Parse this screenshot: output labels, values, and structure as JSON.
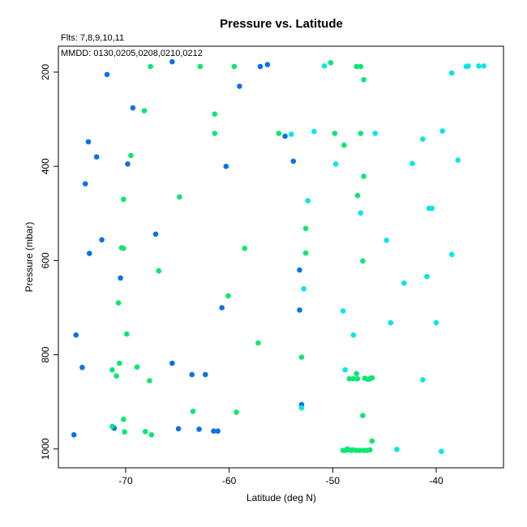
{
  "chart_data": {
    "type": "scatter",
    "title": "Pressure vs. Latitude",
    "annotations": [
      "Flts: 7,8,9,10,11",
      "MMDD: 0130,0205,0208,0210,0212"
    ],
    "xlabel": "Latitude (deg N)",
    "ylabel": "Pressure (mbar)",
    "xlim": [
      -76.5,
      -33.5
    ],
    "ylim": [
      1040,
      145
    ],
    "y_reversed": true,
    "grid": false,
    "legend": "none",
    "xticks": [
      -70,
      -60,
      -50,
      -40
    ],
    "yticks": [
      200,
      400,
      600,
      800,
      1000
    ],
    "colors": {
      "blue": "#0a72e6",
      "green": "#08e872",
      "cyan": "#08e6e6",
      "frame": "#000000"
    },
    "series": [
      {
        "color": "#0a72e6",
        "points": [
          [
            -65.5,
            178
          ],
          [
            -57.0,
            188
          ],
          [
            -56.3,
            184
          ],
          [
            -71.8,
            205
          ],
          [
            -59.0,
            230
          ],
          [
            -69.3,
            276
          ],
          [
            -54.6,
            336
          ],
          [
            -73.6,
            348
          ],
          [
            -72.8,
            380
          ],
          [
            -53.8,
            389
          ],
          [
            -69.8,
            395
          ],
          [
            -60.3,
            400
          ],
          [
            -73.9,
            437
          ],
          [
            -67.1,
            544
          ],
          [
            -72.3,
            556
          ],
          [
            -73.5,
            585
          ],
          [
            -53.2,
            620
          ],
          [
            -70.5,
            637
          ],
          [
            -60.7,
            700
          ],
          [
            -53.2,
            705
          ],
          [
            -74.8,
            758
          ],
          [
            -74.2,
            827
          ],
          [
            -65.5,
            818
          ],
          [
            -63.6,
            842
          ],
          [
            -62.3,
            842
          ],
          [
            -53.0,
            906
          ],
          [
            -71.2,
            954
          ],
          [
            -71.1,
            956
          ],
          [
            -64.9,
            957
          ],
          [
            -62.9,
            958
          ],
          [
            -61.5,
            962
          ],
          [
            -61.1,
            962
          ],
          [
            -75.0,
            970
          ]
        ]
      },
      {
        "color": "#08e872",
        "points": [
          [
            -50.2,
            180
          ],
          [
            -67.6,
            188
          ],
          [
            -62.8,
            188
          ],
          [
            -59.5,
            188
          ],
          [
            -47.7,
            188
          ],
          [
            -47.3,
            188
          ],
          [
            -47.0,
            216
          ],
          [
            -68.2,
            282
          ],
          [
            -61.4,
            289
          ],
          [
            -61.4,
            330
          ],
          [
            -55.2,
            330
          ],
          [
            -49.8,
            330
          ],
          [
            -47.3,
            330
          ],
          [
            -48.9,
            355
          ],
          [
            -69.5,
            377
          ],
          [
            -47.0,
            421
          ],
          [
            -64.8,
            465
          ],
          [
            -70.2,
            470
          ],
          [
            -47.6,
            462
          ],
          [
            -52.6,
            532
          ],
          [
            -70.4,
            573
          ],
          [
            -70.2,
            574
          ],
          [
            -58.5,
            574
          ],
          [
            -52.6,
            584
          ],
          [
            -47.1,
            601
          ],
          [
            -66.8,
            622
          ],
          [
            -60.1,
            675
          ],
          [
            -70.7,
            690
          ],
          [
            -69.9,
            756
          ],
          [
            -57.2,
            775
          ],
          [
            -53.0,
            805
          ],
          [
            -70.6,
            818
          ],
          [
            -68.9,
            826
          ],
          [
            -71.3,
            832
          ],
          [
            -47.7,
            840
          ],
          [
            -70.9,
            845
          ],
          [
            -48.4,
            851
          ],
          [
            -48.0,
            851
          ],
          [
            -47.6,
            851
          ],
          [
            -46.9,
            850
          ],
          [
            -46.6,
            852
          ],
          [
            -46.4,
            851
          ],
          [
            -46.2,
            849
          ],
          [
            -67.7,
            855
          ],
          [
            -63.5,
            920
          ],
          [
            -59.3,
            922
          ],
          [
            -47.1,
            929
          ],
          [
            -70.2,
            937
          ],
          [
            -71.3,
            952
          ],
          [
            -70.1,
            964
          ],
          [
            -68.1,
            963
          ],
          [
            -67.5,
            970
          ],
          [
            -46.2,
            983
          ],
          [
            -48.6,
            1000
          ],
          [
            -48.3,
            1002
          ],
          [
            -48.0,
            1002
          ],
          [
            -47.7,
            1003
          ],
          [
            -47.4,
            1003
          ],
          [
            -47.0,
            1003
          ],
          [
            -46.7,
            1003
          ],
          [
            -46.4,
            1002
          ],
          [
            -49.0,
            1003
          ],
          [
            -48.7,
            1003
          ],
          [
            -48.2,
            1003
          ]
        ]
      },
      {
        "color": "#08e6e6",
        "points": [
          [
            -50.8,
            187
          ],
          [
            -37.1,
            188
          ],
          [
            -36.9,
            187
          ],
          [
            -35.9,
            187
          ],
          [
            -35.4,
            187
          ],
          [
            -38.5,
            202
          ],
          [
            -54.0,
            332
          ],
          [
            -51.8,
            326
          ],
          [
            -45.9,
            330
          ],
          [
            -41.3,
            342
          ],
          [
            -39.4,
            325
          ],
          [
            -49.7,
            395
          ],
          [
            -42.3,
            394
          ],
          [
            -37.9,
            387
          ],
          [
            -52.4,
            473
          ],
          [
            -47.3,
            499
          ],
          [
            -40.7,
            489
          ],
          [
            -40.4,
            489
          ],
          [
            -44.8,
            557
          ],
          [
            -38.5,
            587
          ],
          [
            -40.9,
            634
          ],
          [
            -43.1,
            648
          ],
          [
            -52.8,
            660
          ],
          [
            -49.0,
            707
          ],
          [
            -44.4,
            732
          ],
          [
            -40.0,
            732
          ],
          [
            -48.0,
            758
          ],
          [
            -48.8,
            832
          ],
          [
            -41.3,
            853
          ],
          [
            -53.0,
            913
          ],
          [
            -43.8,
            1001
          ],
          [
            -39.5,
            1005
          ]
        ]
      }
    ]
  }
}
